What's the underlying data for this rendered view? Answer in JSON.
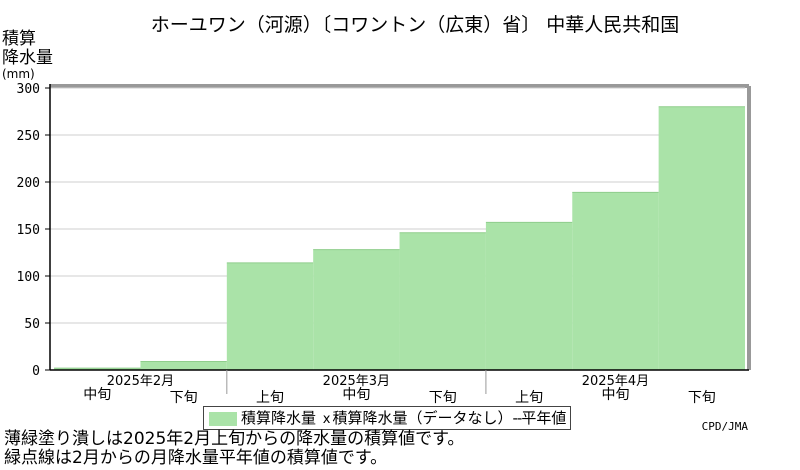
{
  "title": "ホーユワン（河源）〔コワントン（広東）省〕 中華人民共和国",
  "ylabel": {
    "line1": "積算",
    "line2": "降水量",
    "unit": "(mm)"
  },
  "chart_data": {
    "type": "area",
    "title": "ホーユワン（河源）〔コワントン（広東）省〕 中華人民共和国",
    "ylabel": "積算降水量 (mm)",
    "ylim": [
      0,
      300
    ],
    "yticks": [
      0,
      50,
      100,
      150,
      200,
      250,
      300
    ],
    "grid": true,
    "periods": [
      "2月中旬",
      "2月下旬",
      "3月上旬",
      "3月中旬",
      "3月下旬",
      "4月上旬",
      "4月中旬",
      "4月下旬"
    ],
    "period_labels": [
      "中旬",
      "下旬",
      "上旬",
      "中旬",
      "下旬",
      "上旬",
      "中旬",
      "下旬"
    ],
    "month_labels": [
      {
        "label": "2025年2月",
        "start": 0,
        "end": 2
      },
      {
        "label": "2025年3月",
        "start": 2,
        "end": 5
      },
      {
        "label": "2025年4月",
        "start": 5,
        "end": 8
      }
    ],
    "series": [
      {
        "name": "積算降水量",
        "values": [
          2,
          9,
          114,
          128,
          146,
          157,
          189,
          280
        ],
        "color": "#aae3a8"
      }
    ],
    "legend_position": "bottom"
  },
  "legend": {
    "series_label": "積算降水量",
    "nodata_mark": "x",
    "nodata_label": "積算降水量（データなし）",
    "normal_label": "平年値"
  },
  "credit": "CPD/JMA",
  "notes": {
    "line1": "薄緑塗り潰しは2025年2月上旬からの降水量の積算値です。",
    "line2": "緑点線は2月からの月降水量平年値の積算値です。"
  }
}
